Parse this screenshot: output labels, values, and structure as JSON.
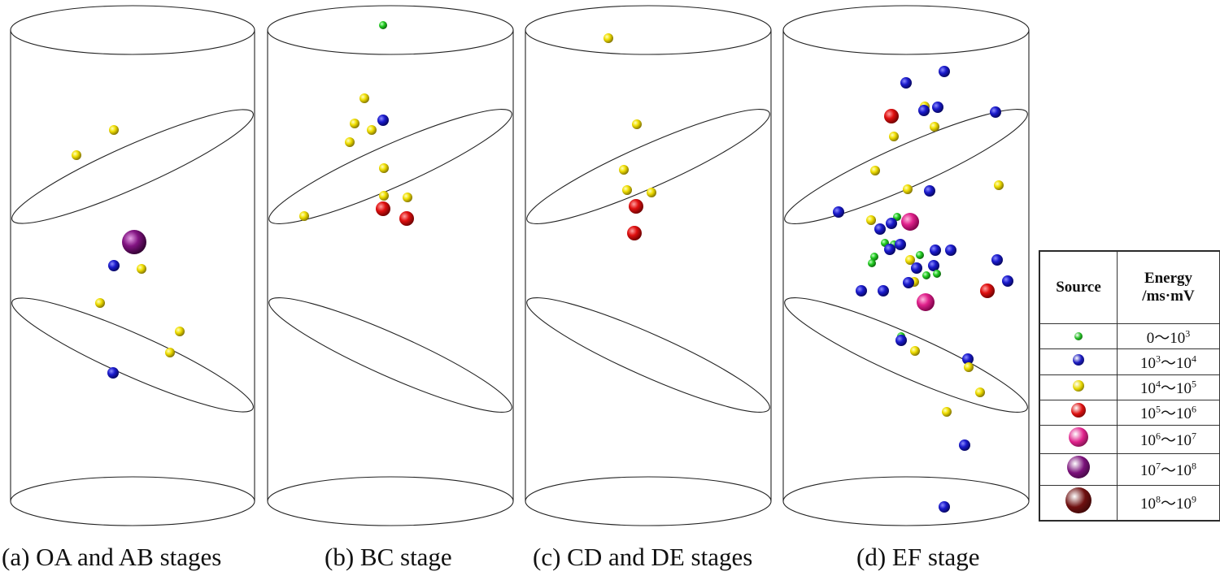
{
  "captions": [
    "(a) OA and AB stages",
    "(b) BC stage",
    "(c) CD and DE stages",
    "(d) EF stage"
  ],
  "legend": {
    "header_source": "Source",
    "header_energy_1": "Energy",
    "header_energy_2": "/ms·mV",
    "rows": [
      {
        "cls": "green",
        "color": "#22bb22",
        "base_lo": "0",
        "exp_lo": "",
        "sep": "～",
        "base_hi": "10",
        "exp_hi": "3"
      },
      {
        "cls": "blue",
        "color": "#1b1bbf",
        "base_lo": "10",
        "exp_lo": "3",
        "sep": "～",
        "base_hi": "10",
        "exp_hi": "4"
      },
      {
        "cls": "yellow",
        "color": "#e8d800",
        "base_lo": "10",
        "exp_lo": "4",
        "sep": "～",
        "base_hi": "10",
        "exp_hi": "5"
      },
      {
        "cls": "red",
        "color": "#dd1010",
        "base_lo": "10",
        "exp_lo": "5",
        "sep": "～",
        "base_hi": "10",
        "exp_hi": "6"
      },
      {
        "cls": "magenta",
        "color": "#e0228c",
        "base_lo": "10",
        "exp_lo": "6",
        "sep": "～",
        "base_hi": "10",
        "exp_hi": "7"
      },
      {
        "cls": "purple",
        "color": "#7a117a",
        "base_lo": "10",
        "exp_lo": "7",
        "sep": "～",
        "base_hi": "10",
        "exp_hi": "8"
      },
      {
        "cls": "maroon",
        "color": "#6e1010",
        "base_lo": "10",
        "exp_lo": "8",
        "sep": "～",
        "base_hi": "10",
        "exp_hi": "9"
      }
    ]
  }
}
